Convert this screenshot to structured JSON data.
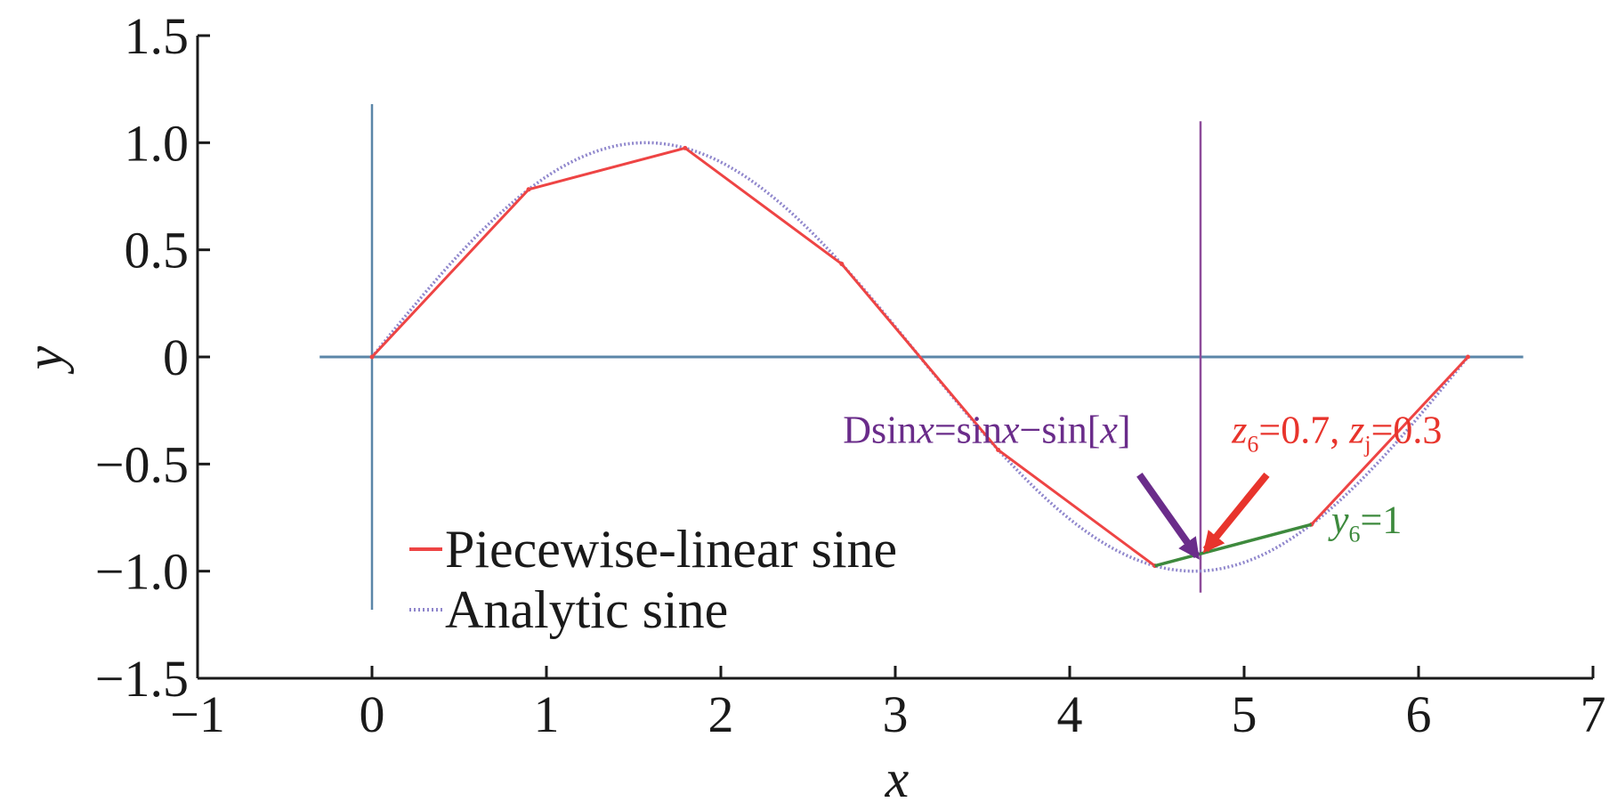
{
  "chart_data": {
    "type": "line",
    "xlabel": "x",
    "ylabel": "y",
    "xlim": [
      -1,
      7
    ],
    "ylim": [
      -1.5,
      1.5
    ],
    "xticks": [
      -1,
      0,
      1,
      2,
      3,
      4,
      5,
      6,
      7
    ],
    "xtick_labels": [
      "−1",
      "0",
      "1",
      "2",
      "3",
      "4",
      "5",
      "6",
      "7"
    ],
    "yticks": [
      -1.5,
      -1.0,
      -0.5,
      0,
      0.5,
      1.0,
      1.5
    ],
    "ytick_labels": [
      "−1.5",
      "−1.0",
      "−0.5",
      "0",
      "0.5",
      "1.0",
      "1.5"
    ],
    "grid": false,
    "legend_position": "bottom-left",
    "series": [
      {
        "name": "Piecewise-linear sine",
        "color": "#ee4444",
        "style": "solid",
        "x": [
          0,
          0.898,
          1.795,
          2.693,
          3.59,
          4.488,
          5.386,
          6.283
        ],
        "y": [
          0,
          0.782,
          0.975,
          0.434,
          -0.434,
          -0.975,
          -0.782,
          0
        ]
      },
      {
        "name": "Analytic sine",
        "color": "#8f86cc",
        "style": "dotted",
        "function": "sin(x)",
        "x_range": [
          0,
          6.283
        ]
      }
    ],
    "reference_lines": {
      "horizontal": {
        "y": 0,
        "x_from": -0.3,
        "x_to": 6.6,
        "color": "#5b86a8"
      },
      "vertical_left": {
        "x": 0,
        "y_from": -1.18,
        "y_to": 1.18,
        "color": "#5b86a8"
      },
      "vertical_right": {
        "x": 4.75,
        "y_from": -1.1,
        "y_to": 1.1,
        "color": "#8e4c9a"
      }
    },
    "highlight_segment": {
      "x": [
        4.488,
        5.386
      ],
      "y": [
        -0.975,
        -0.782
      ],
      "color": "#3d8a3d"
    },
    "annotations": {
      "dsin": {
        "text_parts": [
          "Dsin",
          "x",
          "=sin",
          "x",
          "−sin[",
          "x",
          "]"
        ],
        "color": "#6a2c8a",
        "text_at": [
          2.7,
          -0.4
        ],
        "arrow_from": [
          4.4,
          -0.55
        ],
        "arrow_to": [
          4.73,
          -0.93
        ]
      },
      "z": {
        "text_parts": [
          "z",
          "6",
          "=0.7, ",
          "z",
          "j",
          "=0.3"
        ],
        "color": "#e8342c",
        "text_at": [
          4.93,
          -0.4
        ],
        "arrow_from": [
          5.13,
          -0.55
        ],
        "arrow_to": [
          4.78,
          -0.9
        ]
      },
      "y": {
        "text_parts": [
          "y",
          "6",
          "=1"
        ],
        "color": "#3d8a3d",
        "text_at": [
          5.5,
          -0.82
        ]
      }
    }
  }
}
